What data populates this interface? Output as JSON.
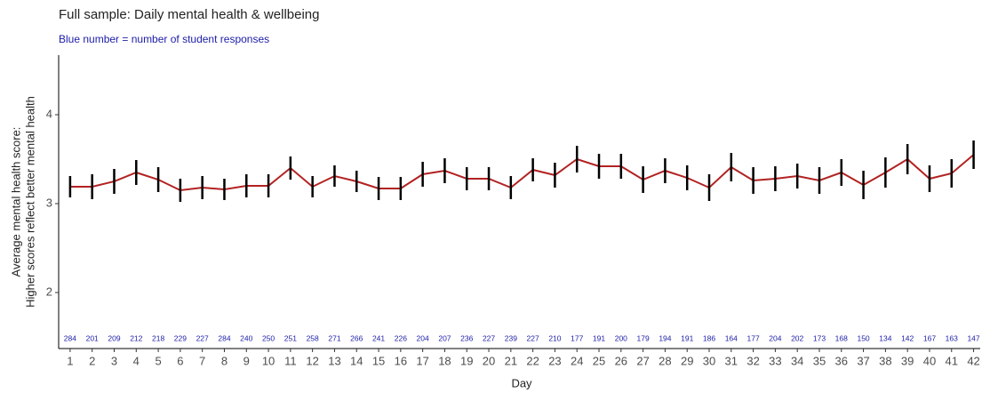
{
  "chart_data": {
    "type": "line",
    "title": "Full sample: Daily mental health & wellbeing",
    "subtitle": "Blue number = number of student responses",
    "ylabel": [
      "Average mental health score:",
      "Higher scores reflect better mental health"
    ],
    "xlabel": "Day",
    "x": [
      1,
      2,
      3,
      4,
      5,
      6,
      7,
      8,
      9,
      10,
      11,
      12,
      13,
      14,
      15,
      16,
      17,
      18,
      19,
      20,
      21,
      22,
      23,
      24,
      25,
      26,
      27,
      28,
      29,
      30,
      31,
      32,
      33,
      34,
      35,
      36,
      37,
      38,
      39,
      40,
      41,
      42
    ],
    "series": [
      {
        "name": "Average mental health score",
        "color": "#b22222",
        "values": [
          3.19,
          3.19,
          3.25,
          3.35,
          3.27,
          3.15,
          3.18,
          3.16,
          3.2,
          3.2,
          3.4,
          3.19,
          3.31,
          3.25,
          3.17,
          3.17,
          3.33,
          3.37,
          3.28,
          3.28,
          3.18,
          3.38,
          3.32,
          3.5,
          3.42,
          3.42,
          3.27,
          3.37,
          3.29,
          3.18,
          3.41,
          3.26,
          3.28,
          3.31,
          3.26,
          3.35,
          3.21,
          3.35,
          3.5,
          3.28,
          3.34,
          3.55
        ],
        "errors": [
          0.12,
          0.14,
          0.14,
          0.14,
          0.14,
          0.13,
          0.13,
          0.12,
          0.13,
          0.13,
          0.13,
          0.12,
          0.12,
          0.12,
          0.13,
          0.13,
          0.14,
          0.14,
          0.13,
          0.13,
          0.13,
          0.13,
          0.14,
          0.15,
          0.14,
          0.14,
          0.15,
          0.14,
          0.14,
          0.15,
          0.16,
          0.15,
          0.14,
          0.14,
          0.15,
          0.15,
          0.16,
          0.17,
          0.17,
          0.15,
          0.16,
          0.16
        ]
      }
    ],
    "counts": [
      284,
      201,
      209,
      212,
      218,
      229,
      227,
      284,
      240,
      250,
      251,
      258,
      271,
      266,
      241,
      226,
      204,
      207,
      236,
      227,
      239,
      227,
      210,
      177,
      191,
      200,
      179,
      194,
      191,
      186,
      164,
      177,
      204,
      202,
      173,
      168,
      150,
      134,
      142,
      167,
      163,
      147
    ],
    "count_color": "#1c1ca8",
    "error_color": "#000000",
    "xlim": [
      0.48,
      42.3
    ],
    "xticks": [
      1,
      2,
      3,
      4,
      5,
      6,
      7,
      8,
      9,
      10,
      11,
      12,
      13,
      14,
      15,
      16,
      17,
      18,
      19,
      20,
      21,
      22,
      23,
      24,
      25,
      26,
      27,
      28,
      29,
      30,
      31,
      32,
      33,
      34,
      35,
      36,
      37,
      38,
      39,
      40,
      41,
      42
    ],
    "ylim": [
      1.37,
      4.67
    ],
    "yticks": [
      2,
      3,
      4
    ],
    "grid": false
  }
}
